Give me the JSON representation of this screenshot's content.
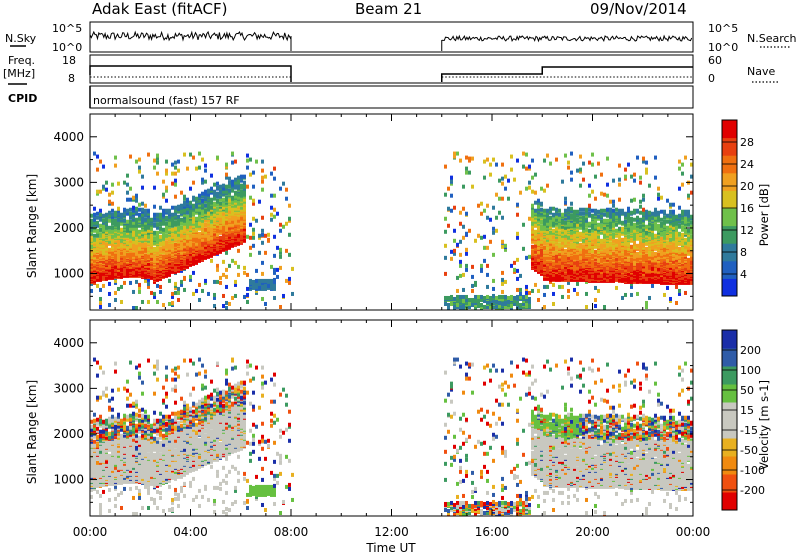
{
  "header": {
    "station": "Adak East (fitACF)",
    "beam": "Beam 21",
    "date": "09/Nov/2014"
  },
  "left_labels": {
    "nsky": "N.Sky",
    "freq": "Freq.",
    "freq_unit": "[MHz]",
    "cpid": "CPID"
  },
  "right_labels": {
    "nsearch": "N.Search",
    "nave": "Nave"
  },
  "scales": {
    "noise_top": "10^5",
    "noise_bottom": "10^0",
    "freq_top": "18",
    "freq_bottom": "8",
    "nave_top": "60",
    "nave_bottom": "0"
  },
  "cpid_text": "normalsound (fast) 157 RF",
  "colors": {
    "power_scale": [
      "#1030e0",
      "#2060c0",
      "#2f7a9c",
      "#3c9a60",
      "#6fc04a",
      "#d8c020",
      "#f0a020",
      "#f07010",
      "#e84010",
      "#e00000"
    ],
    "velocity_scale": [
      "#e00000",
      "#f05010",
      "#f08a10",
      "#e8b020",
      "#c8c8c0",
      "#c8c8c0",
      "#66c040",
      "#3c9a60",
      "#2f5ca8",
      "#1a2ea8"
    ],
    "panel_frame": "#000000"
  },
  "chart_data": [
    {
      "type": "heatmap",
      "title": "",
      "xlabel": "Time UT",
      "ylabel": "Slant Range [km]",
      "colorbar_label": "Power [dB]",
      "colorbar_ticks": [
        "28",
        "24",
        "20",
        "16",
        "12",
        "8",
        "4"
      ],
      "colorbar_range": [
        0,
        30
      ],
      "x_ticks": [
        "00:00",
        "04:00",
        "08:00",
        "12:00",
        "16:00",
        "20:00",
        "00:00"
      ],
      "y_ticks": [
        "4000",
        "3000",
        "2000",
        "1000"
      ],
      "x_range_hours": [
        0,
        24
      ],
      "y_range_km": [
        200,
        4500
      ],
      "data_gap_hours": [
        8,
        14
      ]
    },
    {
      "type": "heatmap",
      "title": "",
      "xlabel": "Time UT",
      "ylabel": "Slant Range [km]",
      "colorbar_label": "Velocity [m s-1]",
      "colorbar_ticks": [
        "200",
        "100",
        "50",
        "15",
        "-15",
        "-50",
        "-100",
        "-200"
      ],
      "x_ticks": [
        "00:00",
        "04:00",
        "08:00",
        "12:00",
        "16:00",
        "20:00",
        "00:00"
      ],
      "y_ticks": [
        "4000",
        "3000",
        "2000",
        "1000"
      ],
      "x_range_hours": [
        0,
        24
      ],
      "y_range_km": [
        200,
        4500
      ],
      "data_gap_hours": [
        8,
        14
      ]
    }
  ]
}
